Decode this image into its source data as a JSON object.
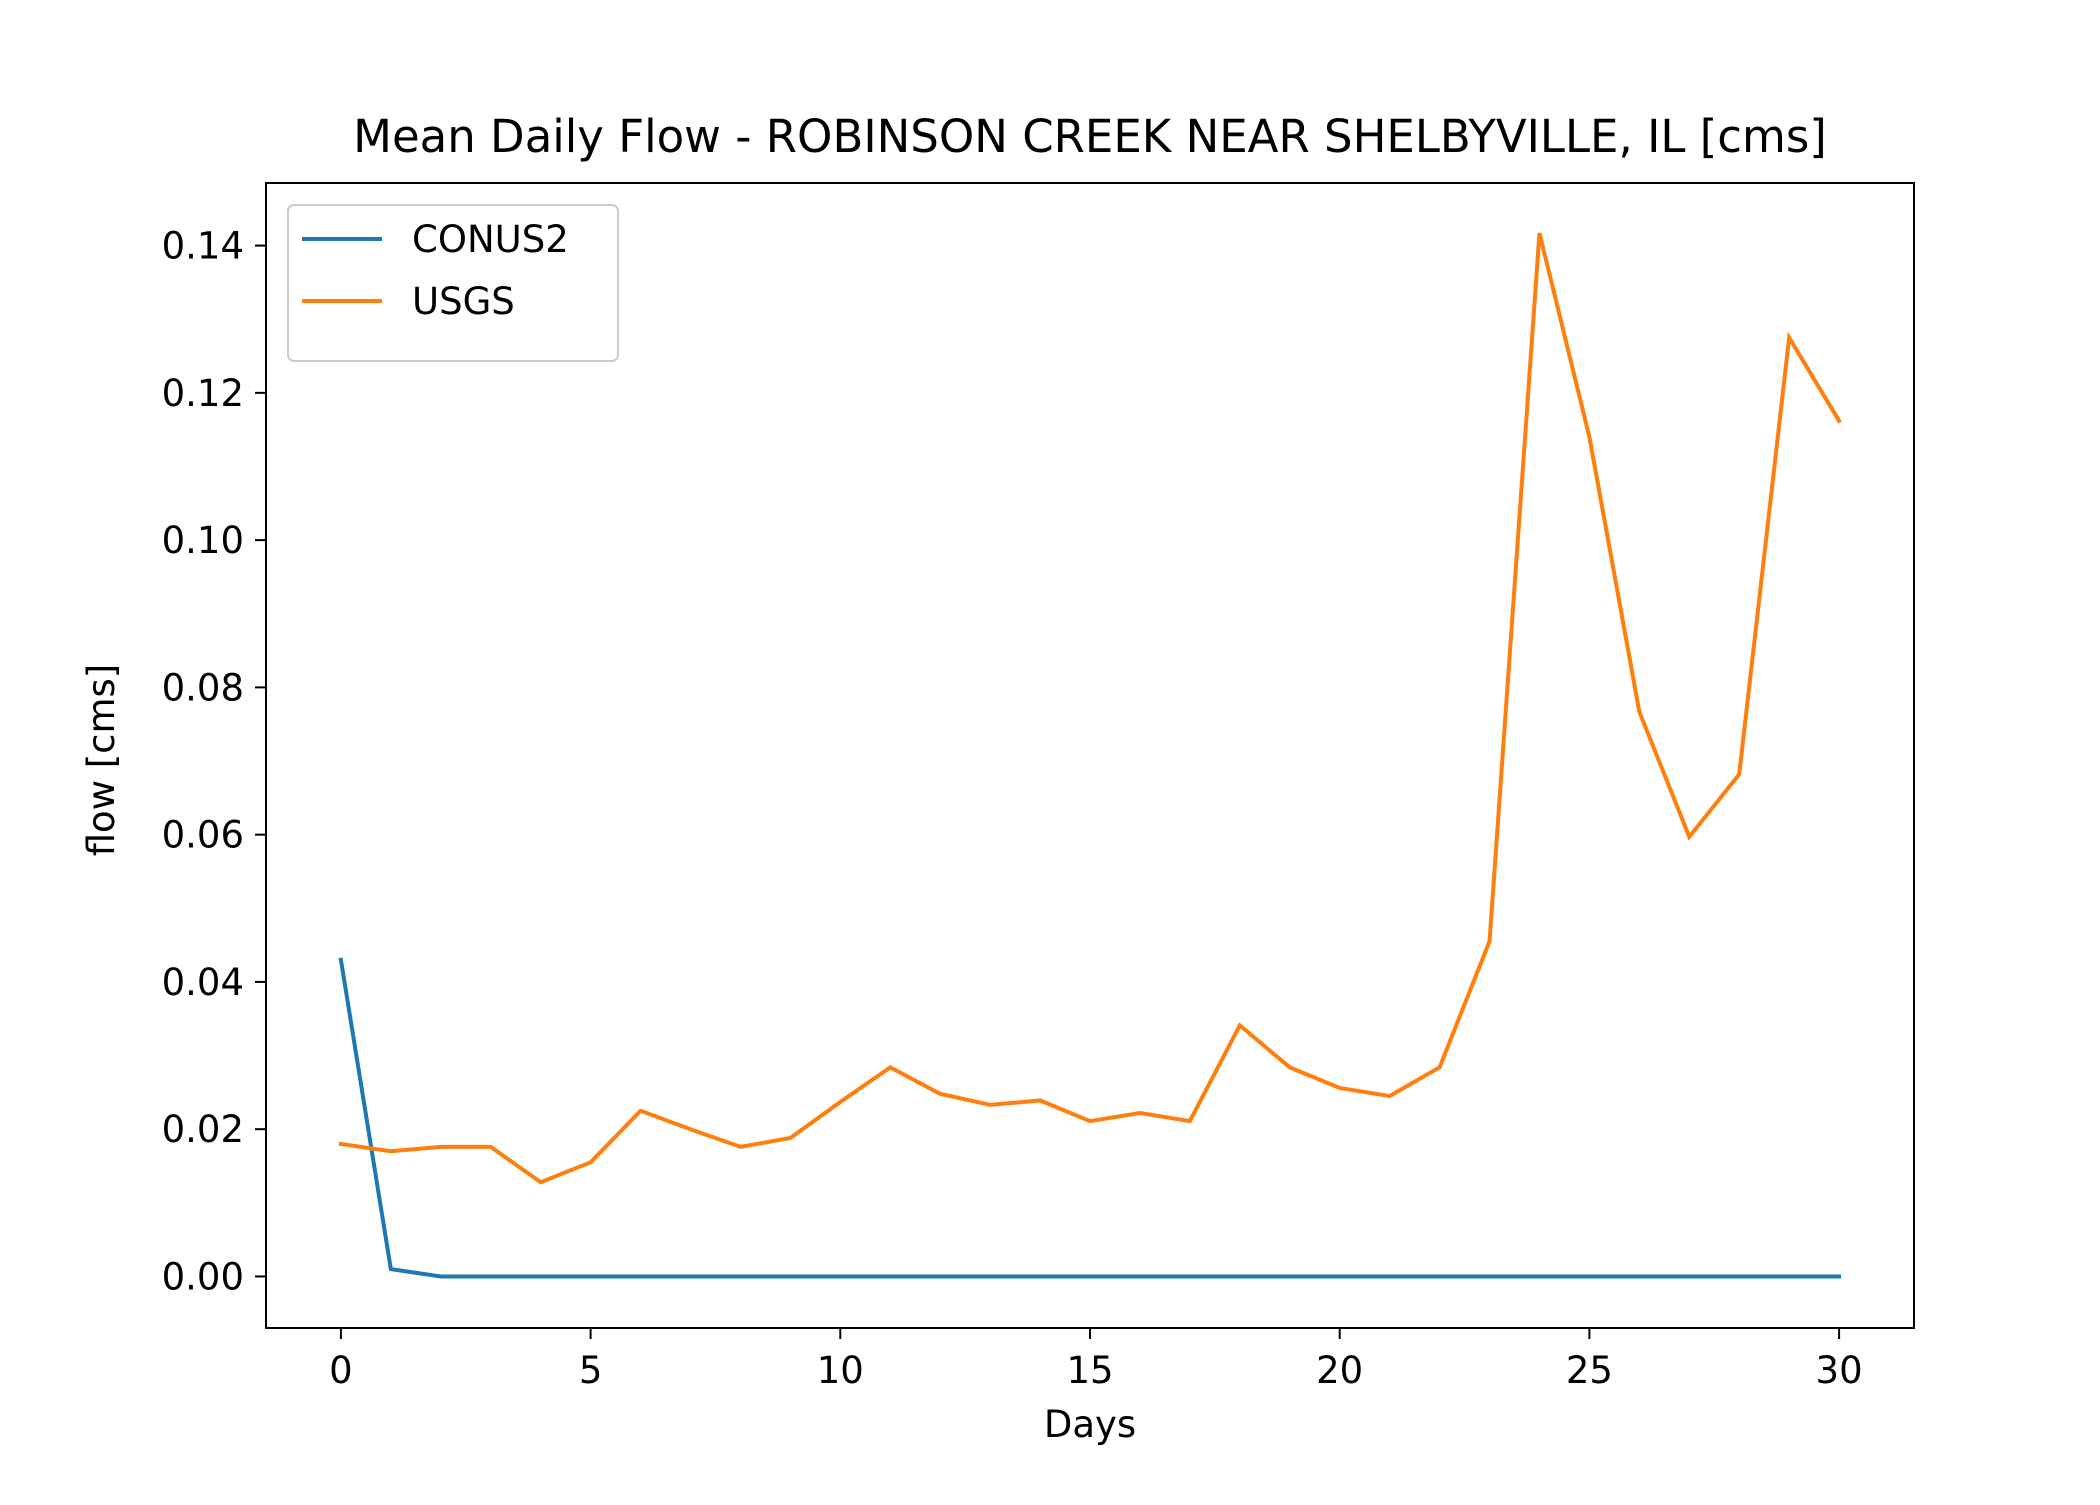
{
  "chart_data": {
    "type": "line",
    "title": "Mean Daily Flow - ROBINSON CREEK NEAR SHELBYVILLE, IL [cms]",
    "xlabel": "Days",
    "ylabel": "flow [cms]",
    "xlim": [
      -1.5,
      31.5
    ],
    "ylim": [
      -0.007,
      0.1485
    ],
    "x_ticks": [
      0,
      5,
      10,
      15,
      20,
      25,
      30
    ],
    "x_tick_labels": [
      "0",
      "5",
      "10",
      "15",
      "20",
      "25",
      "30"
    ],
    "y_ticks": [
      0.0,
      0.02,
      0.04,
      0.06,
      0.08,
      0.1,
      0.12,
      0.14
    ],
    "y_tick_labels": [
      "0.00",
      "0.02",
      "0.04",
      "0.06",
      "0.08",
      "0.10",
      "0.12",
      "0.14"
    ],
    "grid": false,
    "legend_position": "top-left",
    "x": [
      0,
      1,
      2,
      3,
      4,
      5,
      6,
      7,
      8,
      9,
      10,
      11,
      12,
      13,
      14,
      15,
      16,
      17,
      18,
      19,
      20,
      21,
      22,
      23,
      24,
      25,
      26,
      27,
      28,
      29,
      30
    ],
    "series": [
      {
        "name": "CONUS2",
        "color": "#1f77b4",
        "values": [
          0.043,
          0.001,
          0.0,
          0.0,
          0.0,
          0.0,
          0.0,
          0.0,
          0.0,
          0.0,
          0.0,
          0.0,
          0.0,
          0.0,
          0.0,
          0.0,
          0.0,
          0.0,
          0.0,
          0.0,
          0.0,
          0.0,
          0.0,
          0.0,
          0.0,
          0.0,
          0.0,
          0.0,
          0.0,
          0.0,
          0.0
        ]
      },
      {
        "name": "USGS",
        "color": "#ff7f0e",
        "values": [
          0.018,
          0.017,
          0.0176,
          0.0176,
          0.0128,
          0.0155,
          0.0225,
          0.02,
          0.0176,
          0.0188,
          0.0237,
          0.0284,
          0.0248,
          0.0233,
          0.0239,
          0.0211,
          0.0222,
          0.0211,
          0.0341,
          0.0284,
          0.0256,
          0.0245,
          0.0284,
          0.0455,
          0.1417,
          0.114,
          0.0767,
          0.0597,
          0.0682,
          0.1275,
          0.1162
        ]
      }
    ]
  }
}
